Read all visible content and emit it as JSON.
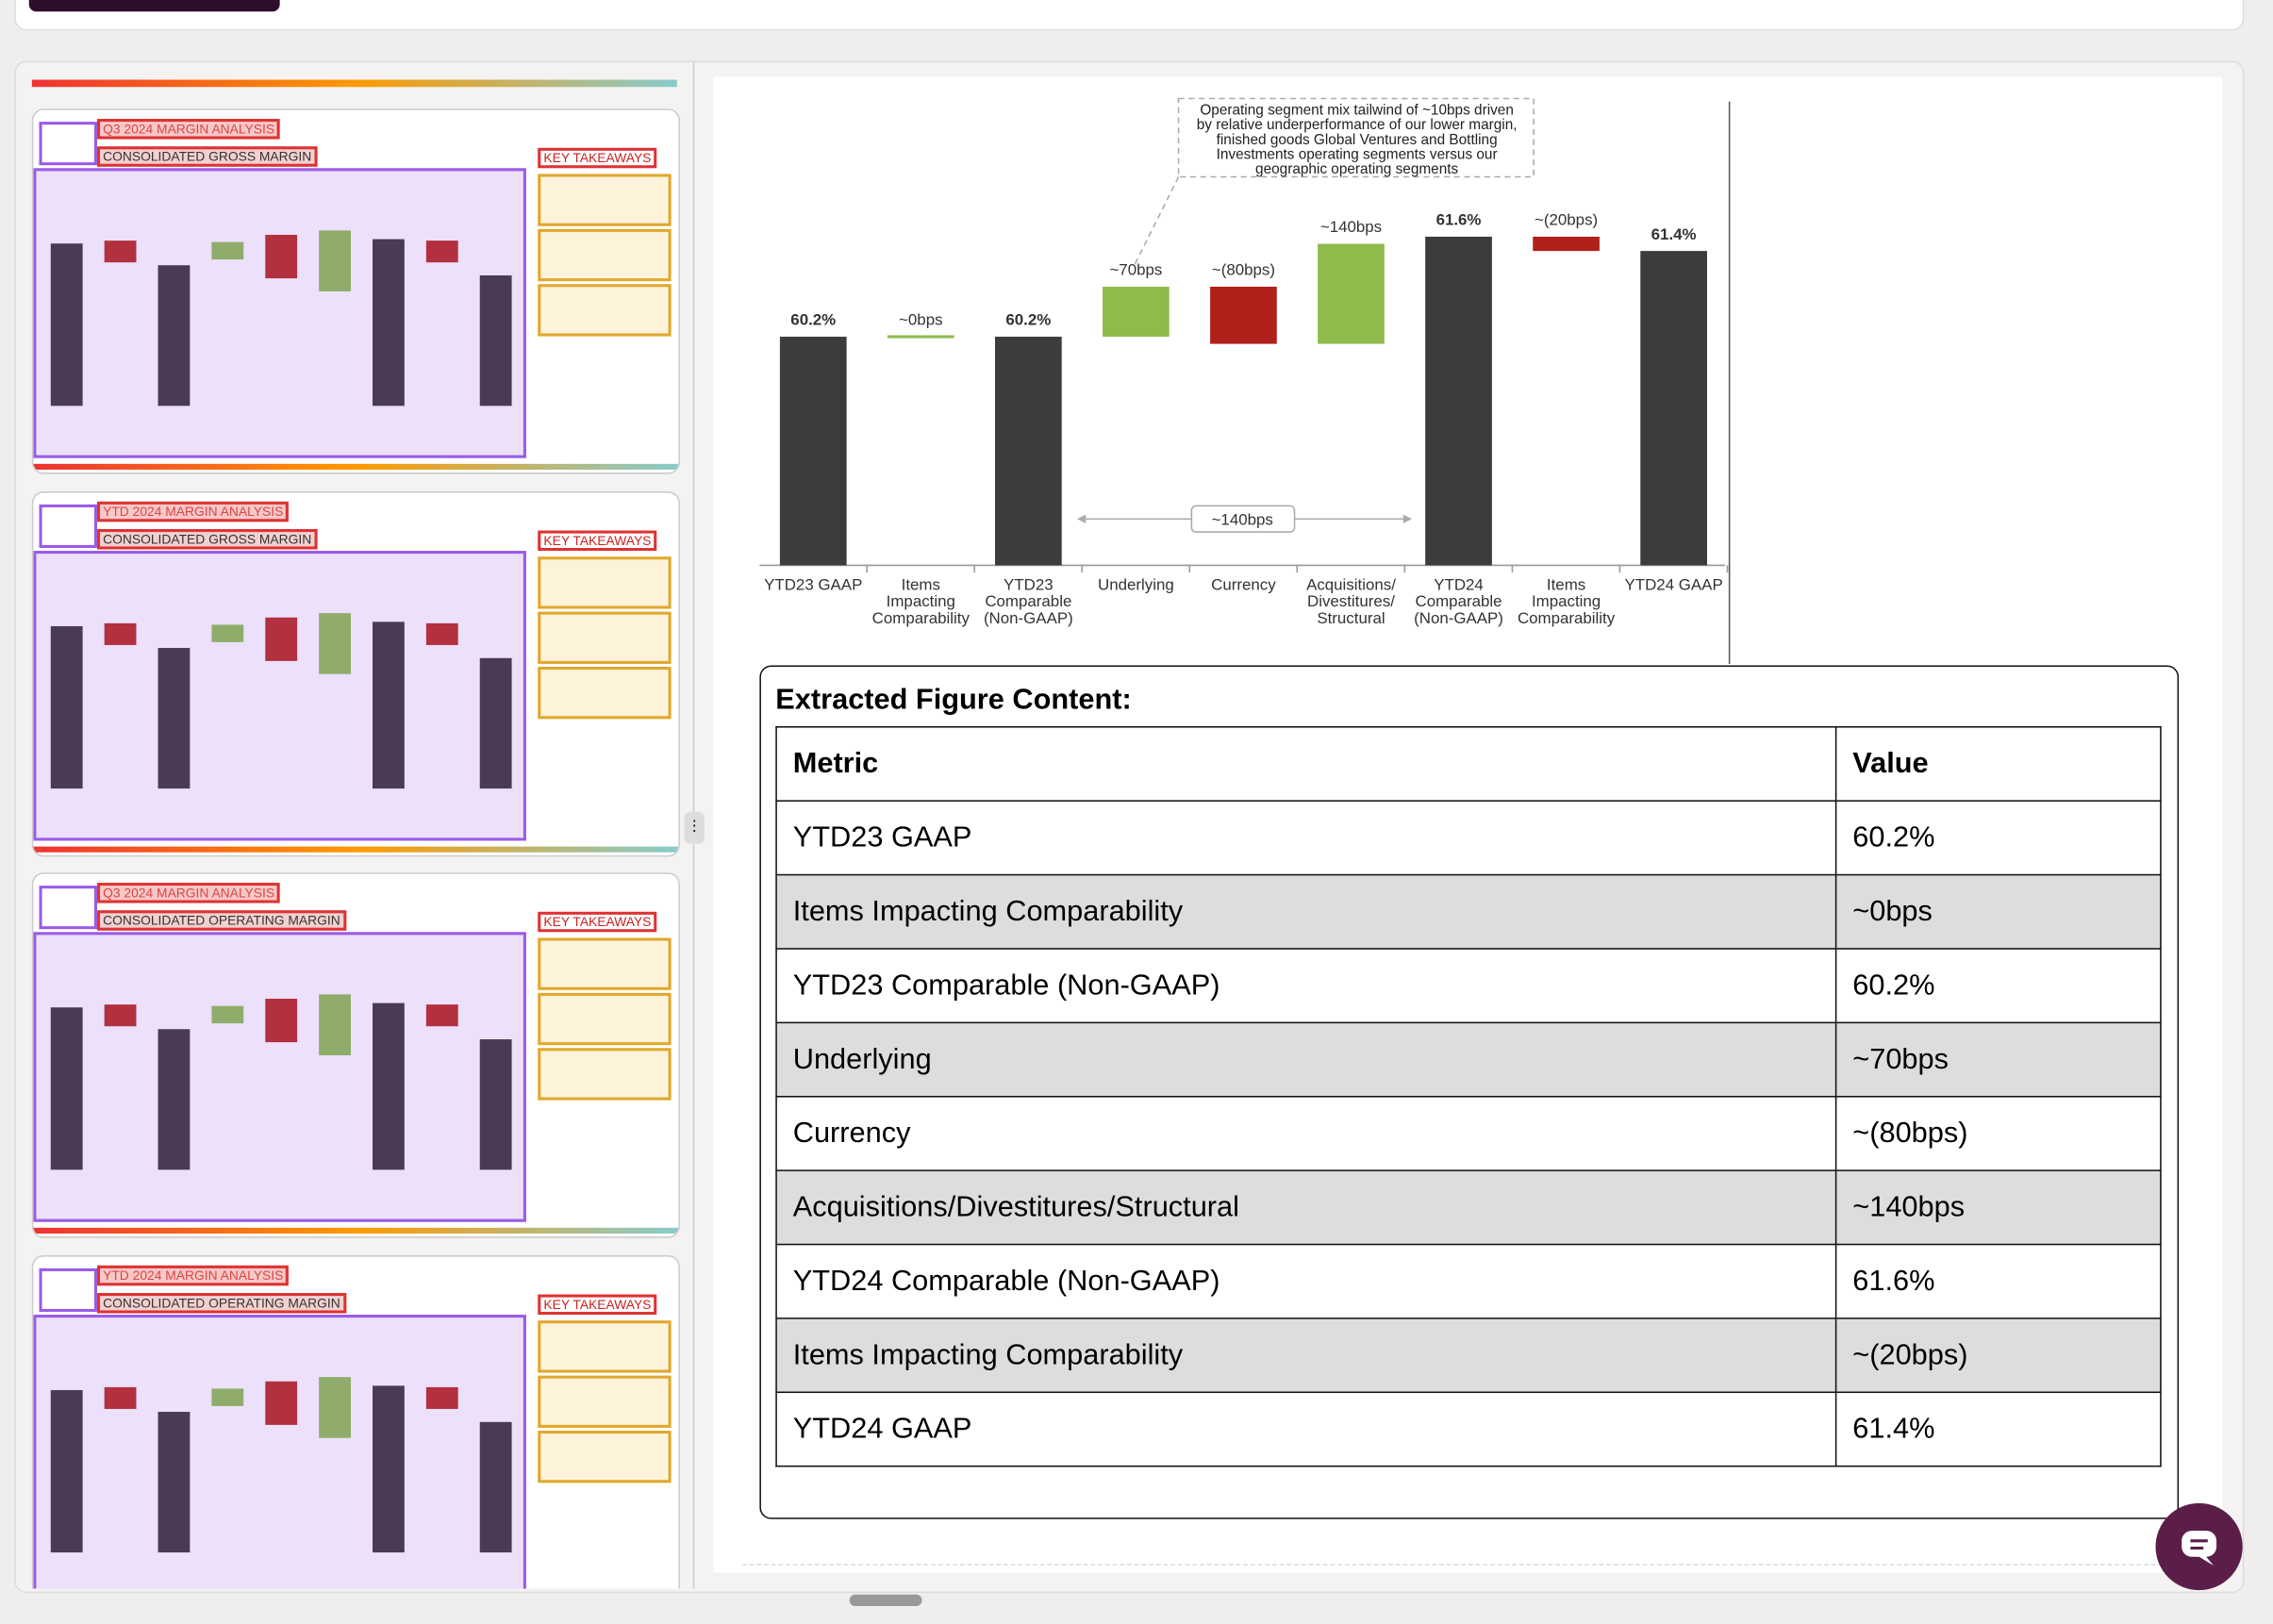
{
  "thumbnails": [
    {
      "title": "Q3 2024 MARGIN ANALYSIS",
      "subtitle": "CONSOLIDATED GROSS MARGIN",
      "takeaways_title": "KEY TAKEAWAYS"
    },
    {
      "title": "YTD 2024 MARGIN ANALYSIS",
      "subtitle": "CONSOLIDATED GROSS MARGIN",
      "takeaways_title": "KEY TAKEAWAYS"
    },
    {
      "title": "Q3 2024 MARGIN ANALYSIS",
      "subtitle": "CONSOLIDATED OPERATING MARGIN",
      "takeaways_title": "KEY TAKEAWAYS"
    },
    {
      "title": "YTD 2024 MARGIN ANALYSIS",
      "subtitle": "CONSOLIDATED OPERATING MARGIN",
      "takeaways_title": "KEY TAKEAWAYS"
    }
  ],
  "chart_data": {
    "type": "waterfall",
    "categories": [
      "YTD23 GAAP",
      "Items\nImpacting\nComparability",
      "YTD23\nComparable\n(Non-GAAP)",
      "Underlying",
      "Currency",
      "Acquisitions/\nDivestitures/\nStructural",
      "YTD24\nComparable\n(Non-GAAP)",
      "Items\nImpacting\nComparability",
      "YTD24 GAAP"
    ],
    "values": [
      60.2,
      0,
      60.2,
      0.7,
      -0.8,
      1.4,
      61.6,
      -0.2,
      61.4
    ],
    "value_labels": [
      "60.2%",
      "~0bps",
      "60.2%",
      "~70bps",
      "~(80bps)",
      "~140bps",
      "61.6%",
      "~(20bps)",
      "61.4%"
    ],
    "measures": [
      "total",
      "relative",
      "total",
      "relative",
      "relative",
      "relative",
      "total",
      "relative",
      "total"
    ],
    "colors": {
      "total": "#3c3c3c",
      "increase": "#8fbb4c",
      "decrease": "#b0211c"
    },
    "ylim": [
      57,
      64
    ],
    "annotations": [
      "Operating segment mix tailwind of ~10bps driven\nby relative underperformance of our lower margin,\nfinished goods Global Ventures and Bottling\nInvestments operating segments versus our\ngeographic operating segments",
      "~140bps"
    ]
  },
  "table": {
    "title": "Extracted Figure Content:",
    "header": [
      "Metric",
      "Value"
    ],
    "rows": [
      [
        "YTD23 GAAP",
        "60.2%"
      ],
      [
        "Items Impacting Comparability",
        "~0bps"
      ],
      [
        "YTD23 Comparable (Non-GAAP)",
        "60.2%"
      ],
      [
        "Underlying",
        "~70bps"
      ],
      [
        "Currency",
        "~(80bps)"
      ],
      [
        "Acquisitions/Divestitures/Structural",
        "~140bps"
      ],
      [
        "YTD24 Comparable (Non-GAAP)",
        "61.6%"
      ],
      [
        "Items Impacting Comparability",
        "~(20bps)"
      ],
      [
        "YTD24 GAAP",
        "61.4%"
      ]
    ]
  }
}
